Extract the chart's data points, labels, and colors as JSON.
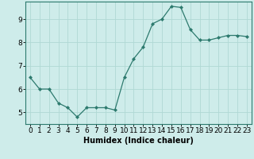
{
  "x": [
    0,
    1,
    2,
    3,
    4,
    5,
    6,
    7,
    8,
    9,
    10,
    11,
    12,
    13,
    14,
    15,
    16,
    17,
    18,
    19,
    20,
    21,
    22,
    23
  ],
  "y": [
    6.5,
    6.0,
    6.0,
    5.4,
    5.2,
    4.8,
    5.2,
    5.2,
    5.2,
    5.1,
    6.5,
    7.3,
    7.8,
    8.8,
    9.0,
    9.55,
    9.5,
    8.55,
    8.1,
    8.1,
    8.2,
    8.3,
    8.3,
    8.25
  ],
  "line_color": "#2d7a6e",
  "marker": "D",
  "marker_size": 2.0,
  "bg_color": "#ceecea",
  "grid_color": "#b0d8d4",
  "xlabel": "Humidex (Indice chaleur)",
  "xlabel_fontsize": 7,
  "yticks": [
    5,
    6,
    7,
    8,
    9
  ],
  "xticks": [
    0,
    1,
    2,
    3,
    4,
    5,
    6,
    7,
    8,
    9,
    10,
    11,
    12,
    13,
    14,
    15,
    16,
    17,
    18,
    19,
    20,
    21,
    22,
    23
  ],
  "ylim": [
    4.5,
    9.75
  ],
  "xlim": [
    -0.5,
    23.5
  ],
  "tick_fontsize": 6.5,
  "spine_color": "#2d7a6e",
  "linewidth": 0.9
}
